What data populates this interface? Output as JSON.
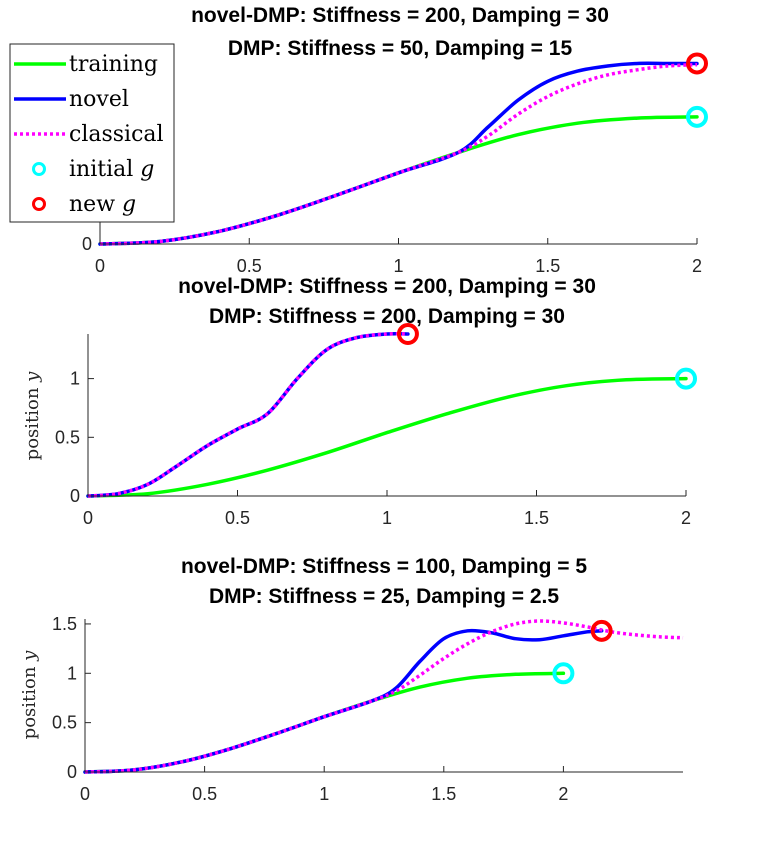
{
  "colors": {
    "training": "#00ff00",
    "novel": "#0000ff",
    "classical": "#ff00ff",
    "initial_g": "#00ffff",
    "new_g": "#ff0000"
  },
  "legend": {
    "placement": "top-left",
    "entries": [
      {
        "key": "training",
        "label": "training",
        "style": "solid"
      },
      {
        "key": "novel",
        "label": "novel",
        "style": "solid"
      },
      {
        "key": "classical",
        "label": "classical",
        "style": "dotted"
      },
      {
        "key": "initial_g",
        "label": "initial ",
        "var": "g",
        "style": "marker"
      },
      {
        "key": "new_g",
        "label": "new ",
        "var": "g",
        "style": "marker"
      }
    ]
  },
  "chart_data": [
    {
      "type": "line",
      "title_line1": "novel-DMP: Stiffness = 200, Damping = 30",
      "title_line2": "DMP: Stiffness = 50, Damping = 15",
      "ylabel": "",
      "ylabel_var": "",
      "xlim": [
        0,
        2
      ],
      "ylim": [
        0,
        1.4
      ],
      "xticks": [
        0,
        0.5,
        1,
        1.5,
        2
      ],
      "xtick_labels": [
        "0",
        "0.5",
        "1",
        "1.5",
        "2"
      ],
      "yticks": [
        0
      ],
      "ytick_labels": [
        "0"
      ],
      "series": [
        {
          "name": "training",
          "x": [
            0,
            0.2,
            0.4,
            0.6,
            0.8,
            1.0,
            1.2,
            1.4,
            1.6,
            1.8,
            2.0
          ],
          "y": [
            0,
            0.02,
            0.1,
            0.23,
            0.39,
            0.56,
            0.72,
            0.86,
            0.95,
            0.99,
            1.0
          ]
        },
        {
          "name": "novel",
          "x": [
            0,
            0.2,
            0.4,
            0.6,
            0.8,
            1.0,
            1.2,
            1.3,
            1.4,
            1.5,
            1.6,
            1.7,
            1.8,
            1.9,
            2.0
          ],
          "y": [
            0,
            0.02,
            0.1,
            0.23,
            0.39,
            0.56,
            0.72,
            0.92,
            1.13,
            1.28,
            1.36,
            1.4,
            1.42,
            1.42,
            1.42
          ]
        },
        {
          "name": "classical",
          "x": [
            0,
            0.2,
            0.4,
            0.6,
            0.8,
            1.0,
            1.2,
            1.3,
            1.4,
            1.5,
            1.6,
            1.7,
            1.8,
            1.9,
            2.0
          ],
          "y": [
            0,
            0.02,
            0.1,
            0.23,
            0.39,
            0.56,
            0.72,
            0.85,
            1.02,
            1.16,
            1.26,
            1.33,
            1.37,
            1.4,
            1.41
          ]
        }
      ],
      "markers": [
        {
          "name": "initial g",
          "x": 2.0,
          "y": 1.0
        },
        {
          "name": "new g",
          "x": 2.0,
          "y": 1.42
        }
      ]
    },
    {
      "type": "line",
      "title_line1": "novel-DMP: Stiffness = 200, Damping = 30",
      "title_line2": "DMP: Stiffness = 200, Damping = 30",
      "ylabel": "position ",
      "ylabel_var": "y",
      "xlim": [
        0,
        2
      ],
      "ylim": [
        0,
        1.38
      ],
      "xticks": [
        0,
        0.5,
        1,
        1.5,
        2
      ],
      "xtick_labels": [
        "0",
        "0.5",
        "1",
        "1.5",
        "2"
      ],
      "yticks": [
        0,
        0.5,
        1
      ],
      "ytick_labels": [
        "0",
        "0.5",
        "1"
      ],
      "series": [
        {
          "name": "training",
          "x": [
            0,
            0.2,
            0.4,
            0.6,
            0.8,
            1.0,
            1.2,
            1.4,
            1.6,
            1.8,
            2.0
          ],
          "y": [
            0,
            0.02,
            0.1,
            0.22,
            0.37,
            0.54,
            0.7,
            0.84,
            0.94,
            0.99,
            1.0
          ]
        },
        {
          "name": "novel",
          "x": [
            0,
            0.1,
            0.2,
            0.3,
            0.4,
            0.5,
            0.6,
            0.7,
            0.8,
            0.9,
            1.0,
            1.07
          ],
          "y": [
            0,
            0.02,
            0.1,
            0.26,
            0.43,
            0.57,
            0.7,
            1.0,
            1.25,
            1.35,
            1.38,
            1.38
          ]
        },
        {
          "name": "classical",
          "x": [
            0,
            0.1,
            0.2,
            0.3,
            0.4,
            0.5,
            0.6,
            0.7,
            0.8,
            0.9,
            1.0,
            1.07
          ],
          "y": [
            0,
            0.02,
            0.1,
            0.26,
            0.43,
            0.57,
            0.7,
            1.0,
            1.25,
            1.35,
            1.38,
            1.38
          ]
        }
      ],
      "markers": [
        {
          "name": "initial g",
          "x": 2.0,
          "y": 1.0
        },
        {
          "name": "new g",
          "x": 1.07,
          "y": 1.38
        }
      ]
    },
    {
      "type": "line",
      "title_line1": "novel-DMP: Stiffness = 100, Damping = 5",
      "title_line2": "DMP: Stiffness = 25, Damping = 2.5",
      "ylabel": "position ",
      "ylabel_var": "y",
      "xlim": [
        0,
        2.5
      ],
      "ylim": [
        0,
        1.55
      ],
      "xticks": [
        0,
        0.5,
        1,
        1.5,
        2
      ],
      "xtick_labels": [
        "0",
        "0.5",
        "1",
        "1.5",
        "2"
      ],
      "yticks": [
        0,
        0.5,
        1,
        1.5
      ],
      "ytick_labels": [
        "0",
        "0.5",
        "1",
        "1.5"
      ],
      "series": [
        {
          "name": "training",
          "x": [
            0,
            0.2,
            0.4,
            0.6,
            0.8,
            1.0,
            1.2,
            1.4,
            1.6,
            1.8,
            2.0
          ],
          "y": [
            0,
            0.02,
            0.1,
            0.23,
            0.39,
            0.56,
            0.72,
            0.86,
            0.95,
            0.99,
            1.0
          ]
        },
        {
          "name": "novel",
          "x": [
            0,
            0.2,
            0.4,
            0.6,
            0.8,
            1.0,
            1.2,
            1.3,
            1.4,
            1.5,
            1.6,
            1.7,
            1.8,
            1.9,
            2.0,
            2.1,
            2.16
          ],
          "y": [
            0,
            0.02,
            0.1,
            0.23,
            0.39,
            0.56,
            0.72,
            0.85,
            1.12,
            1.35,
            1.43,
            1.41,
            1.35,
            1.34,
            1.38,
            1.42,
            1.43
          ]
        },
        {
          "name": "classical",
          "x": [
            0,
            0.2,
            0.4,
            0.6,
            0.8,
            1.0,
            1.2,
            1.3,
            1.4,
            1.5,
            1.6,
            1.7,
            1.8,
            1.9,
            2.0,
            2.1,
            2.2,
            2.3,
            2.4,
            2.5
          ],
          "y": [
            0,
            0.02,
            0.1,
            0.23,
            0.39,
            0.56,
            0.72,
            0.82,
            0.98,
            1.15,
            1.3,
            1.42,
            1.5,
            1.53,
            1.51,
            1.47,
            1.42,
            1.39,
            1.37,
            1.36
          ]
        }
      ],
      "markers": [
        {
          "name": "initial g",
          "x": 2.0,
          "y": 1.0
        },
        {
          "name": "new g",
          "x": 2.16,
          "y": 1.43
        }
      ]
    }
  ]
}
